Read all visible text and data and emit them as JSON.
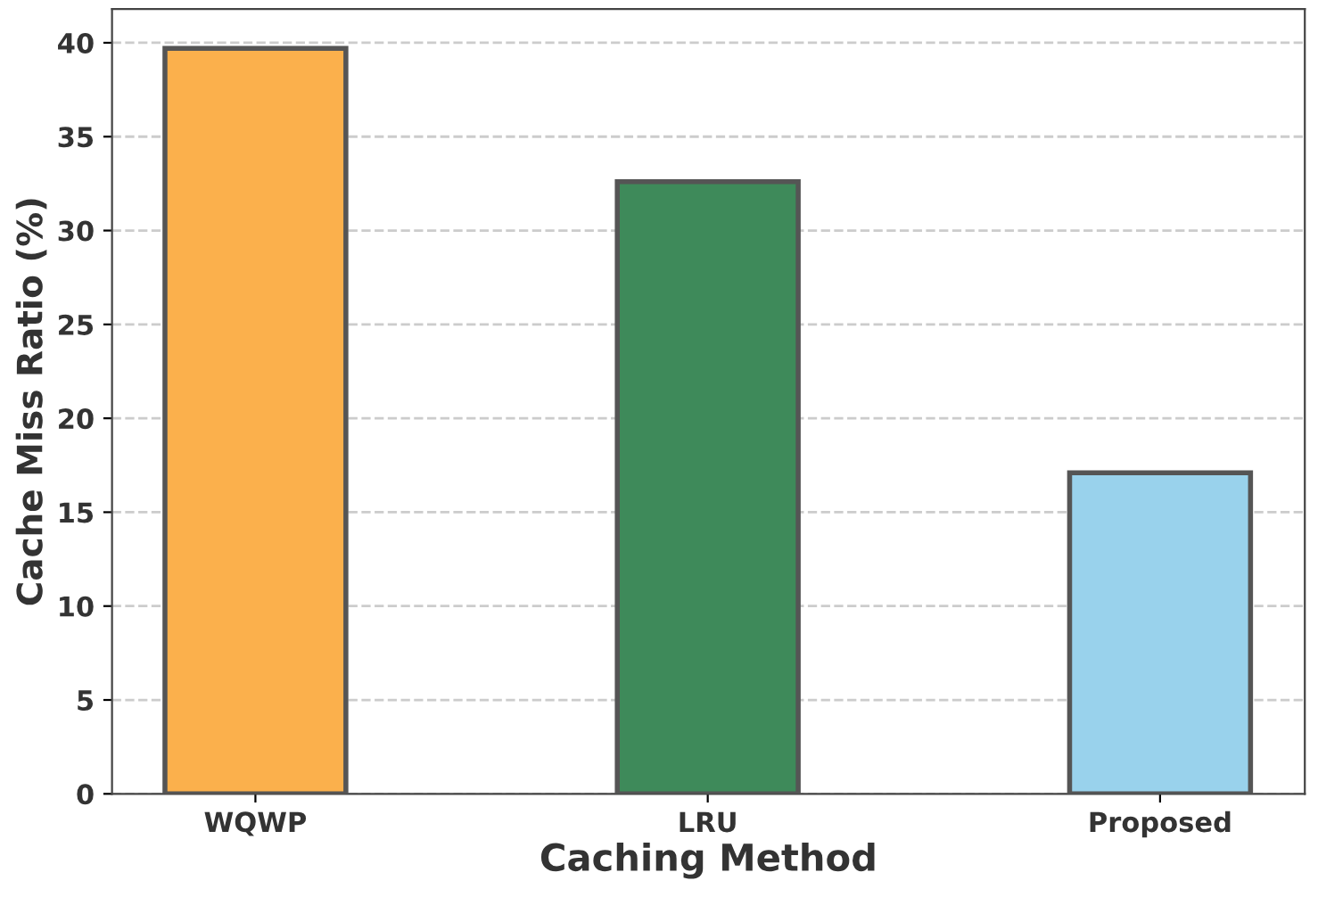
{
  "chart_data": {
    "type": "bar",
    "xlabel": "Caching Method",
    "ylabel": "Cache Miss Ratio (%)",
    "categories": [
      "WQWP",
      "LRU",
      "Proposed"
    ],
    "values": [
      39.7,
      32.6,
      17.1
    ],
    "colors": [
      "#fbb04c",
      "#3e8a5a",
      "#99d2ec"
    ],
    "ylim": [
      0,
      41.8
    ],
    "yticks": [
      0,
      5,
      10,
      15,
      20,
      25,
      30,
      35,
      40
    ],
    "grid": "y",
    "legend": false
  }
}
